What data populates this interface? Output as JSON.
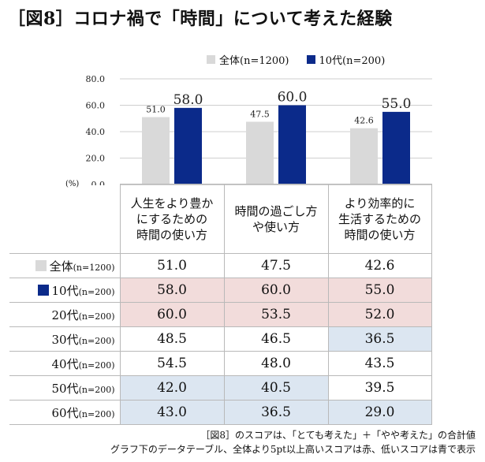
{
  "title": "［図8］コロナ禍で「時間」について考えた経験",
  "legend": [
    {
      "label": "全体(n=1200)",
      "color": "#d9d9d9"
    },
    {
      "label": "10代(n=200)",
      "color": "#0b2a8a"
    }
  ],
  "unit_label": "(%)",
  "chart_data": {
    "type": "bar",
    "categories": [
      "人生をより豊かにするための時間の使い方",
      "時間の過ごし方や使い方",
      "より効率的に生活するための時間の使い方"
    ],
    "series": [
      {
        "name": "全体(n=1200)",
        "values": [
          51.0,
          47.5,
          42.6
        ],
        "color": "#d9d9d9"
      },
      {
        "name": "10代(n=200)",
        "values": [
          58.0,
          60.0,
          55.0
        ],
        "color": "#0b2a8a"
      }
    ],
    "ylim": [
      0,
      80
    ],
    "yticks": [
      "0.0",
      "20.0",
      "40.0",
      "60.0",
      "80.0"
    ],
    "grid": true
  },
  "table": {
    "headers": [
      [
        "人生をより豊か",
        "にするための",
        "時間の使い方"
      ],
      [
        "時間の過ごし方",
        "や使い方"
      ],
      [
        "より効率的に",
        "生活するための",
        "時間の使い方"
      ]
    ],
    "rows": [
      {
        "label": "全体",
        "n": "(n=1200)",
        "swatch": "#d9d9d9",
        "values": [
          "51.0",
          "47.5",
          "42.6"
        ],
        "marks": [
          "",
          "",
          ""
        ]
      },
      {
        "label": "10代",
        "n": "(n=200)",
        "swatch": "#0b2a8a",
        "values": [
          "58.0",
          "60.0",
          "55.0"
        ],
        "marks": [
          "hi",
          "hi",
          "hi"
        ]
      },
      {
        "label": "20代",
        "n": "(n=200)",
        "values": [
          "60.0",
          "53.5",
          "52.0"
        ],
        "marks": [
          "hi",
          "hi",
          "hi"
        ]
      },
      {
        "label": "30代",
        "n": "(n=200)",
        "values": [
          "48.5",
          "46.5",
          "36.5"
        ],
        "marks": [
          "",
          "",
          "lo"
        ]
      },
      {
        "label": "40代",
        "n": "(n=200)",
        "values": [
          "54.5",
          "48.0",
          "43.5"
        ],
        "marks": [
          "",
          "",
          ""
        ]
      },
      {
        "label": "50代",
        "n": "(n=200)",
        "values": [
          "42.0",
          "40.5",
          "39.5"
        ],
        "marks": [
          "lo",
          "lo",
          ""
        ]
      },
      {
        "label": "60代",
        "n": "(n=200)",
        "values": [
          "43.0",
          "36.5",
          "29.0"
        ],
        "marks": [
          "lo",
          "lo",
          "lo"
        ]
      }
    ]
  },
  "notes": [
    "［図8］のスコアは、「とても考えた」＋「やや考えた」の合計値",
    "グラフ下のデータテーブル、全体より5pt以上高いスコアは赤、低いスコアは青で表示"
  ]
}
